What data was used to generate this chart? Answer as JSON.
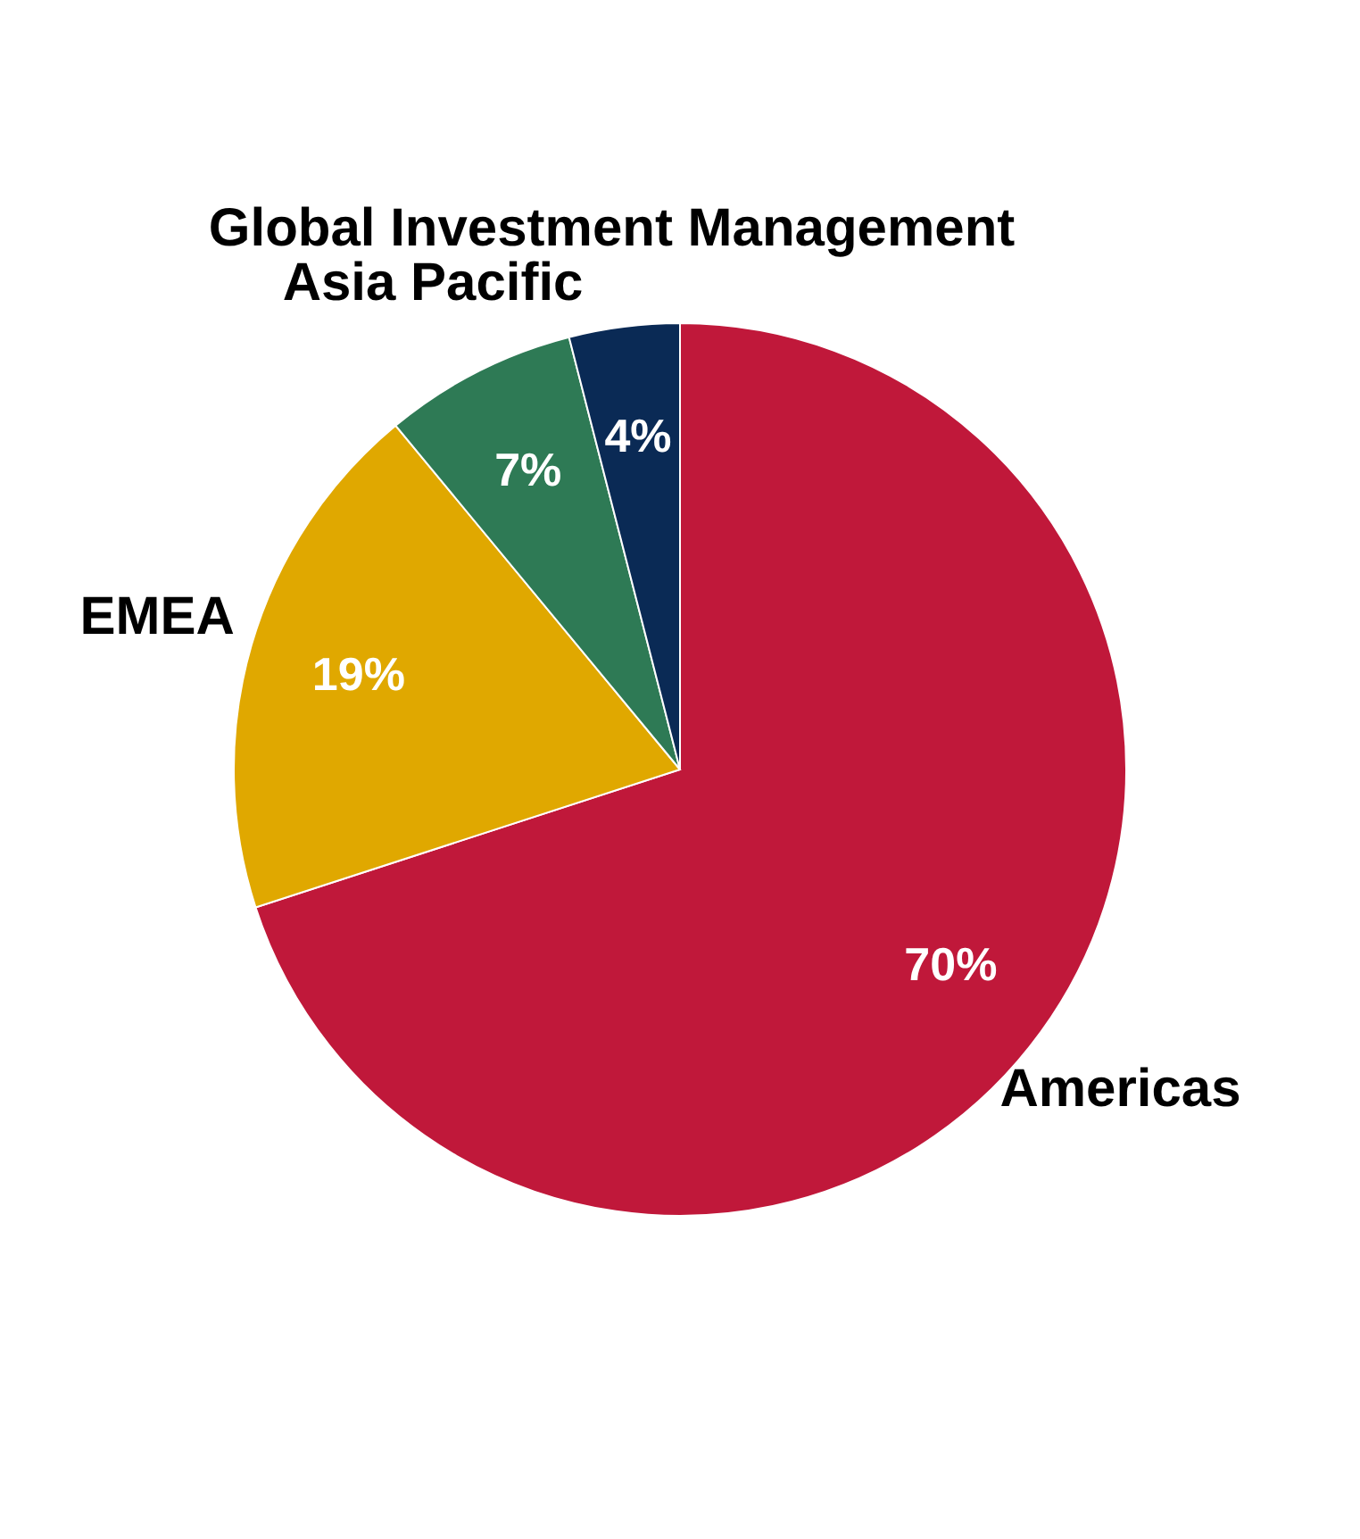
{
  "chart_data": {
    "type": "pie",
    "categories": [
      "Americas",
      "EMEA",
      "Asia Pacific",
      "Global Investment Management"
    ],
    "values": [
      70,
      19,
      7,
      4
    ],
    "colors": [
      "#c0183a",
      "#e0a800",
      "#2e7a55",
      "#0a2a55"
    ],
    "value_labels": [
      "70%",
      "19%",
      "7%",
      "4%"
    ],
    "legend": false
  }
}
